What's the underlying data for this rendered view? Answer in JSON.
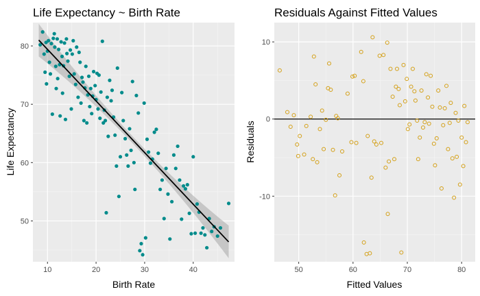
{
  "chart_data": [
    {
      "type": "scatter",
      "title": "Life Expectancy ~ Birth Rate",
      "xlabel": "Birth Rate",
      "ylabel": "Life Expectancy",
      "xlim": [
        7,
        48.5
      ],
      "ylim": [
        43,
        84
      ],
      "xticks": [
        10,
        20,
        30,
        40
      ],
      "yticks": [
        50,
        60,
        70,
        80
      ],
      "xtick_labels": [
        "10",
        "20",
        "30",
        "40"
      ],
      "ytick_labels": [
        "50",
        "60",
        "70",
        "80"
      ],
      "point_color": "#008b8b",
      "fit_line": {
        "x": [
          8.2,
          47.3
        ],
        "y": [
          81.0,
          46.4
        ],
        "color": "#000000",
        "band_color": "#999999"
      },
      "points": [
        [
          8.5,
          80.2
        ],
        [
          9.0,
          82.4
        ],
        [
          9.3,
          78.6
        ],
        [
          9.5,
          75.5
        ],
        [
          9.7,
          80.6
        ],
        [
          9.8,
          73.5
        ],
        [
          10.0,
          79.1
        ],
        [
          10.2,
          80.9
        ],
        [
          10.4,
          77.2
        ],
        [
          10.6,
          75.2
        ],
        [
          10.8,
          80.4
        ],
        [
          11.0,
          68.3
        ],
        [
          11.2,
          81.3
        ],
        [
          11.4,
          82.1
        ],
        [
          11.5,
          79.8
        ],
        [
          11.7,
          76.5
        ],
        [
          11.8,
          72.7
        ],
        [
          12.0,
          81.2
        ],
        [
          12.1,
          74.4
        ],
        [
          12.3,
          79.4
        ],
        [
          12.5,
          76.8
        ],
        [
          12.6,
          68.0
        ],
        [
          12.8,
          80.7
        ],
        [
          13.0,
          78.2
        ],
        [
          13.1,
          71.9
        ],
        [
          13.3,
          76.6
        ],
        [
          13.5,
          80.5
        ],
        [
          13.7,
          67.4
        ],
        [
          13.9,
          81.2
        ],
        [
          14.0,
          78.7
        ],
        [
          14.2,
          77.4
        ],
        [
          14.5,
          74.8
        ],
        [
          14.7,
          79.3
        ],
        [
          14.9,
          69.2
        ],
        [
          15.1,
          78.6
        ],
        [
          15.3,
          80.9
        ],
        [
          15.5,
          75.2
        ],
        [
          15.8,
          73.4
        ],
        [
          16.0,
          79.8
        ],
        [
          16.3,
          71.2
        ],
        [
          16.5,
          78.9
        ],
        [
          16.7,
          77.2
        ],
        [
          16.9,
          70.2
        ],
        [
          17.1,
          74.6
        ],
        [
          17.3,
          73.8
        ],
        [
          17.5,
          67.2
        ],
        [
          17.7,
          72.8
        ],
        [
          17.9,
          76.5
        ],
        [
          18.1,
          66.8
        ],
        [
          18.3,
          71.6
        ],
        [
          18.5,
          74.8
        ],
        [
          18.7,
          69.6
        ],
        [
          18.9,
          72.7
        ],
        [
          19.1,
          68.4
        ],
        [
          19.3,
          71.4
        ],
        [
          19.5,
          75.6
        ],
        [
          19.8,
          73.2
        ],
        [
          20.0,
          70.8
        ],
        [
          20.2,
          75.3
        ],
        [
          20.4,
          69.2
        ],
        [
          20.6,
          75.0
        ],
        [
          20.8,
          67.6
        ],
        [
          21.0,
          72.1
        ],
        [
          21.3,
          80.8
        ],
        [
          21.5,
          66.8
        ],
        [
          21.7,
          69.0
        ],
        [
          21.9,
          67.2
        ],
        [
          22.1,
          51.4
        ],
        [
          22.3,
          71.2
        ],
        [
          22.5,
          64.5
        ],
        [
          22.8,
          74.1
        ],
        [
          23.1,
          70.6
        ],
        [
          23.3,
          72.4
        ],
        [
          23.6,
          67.8
        ],
        [
          23.9,
          64.7
        ],
        [
          24.2,
          59.4
        ],
        [
          24.4,
          76.2
        ],
        [
          24.7,
          54.2
        ],
        [
          25.0,
          61.0
        ],
        [
          25.3,
          72.0
        ],
        [
          25.6,
          67.2
        ],
        [
          26.0,
          64.1
        ],
        [
          26.3,
          61.3
        ],
        [
          26.6,
          59.4
        ],
        [
          26.9,
          65.8
        ],
        [
          27.2,
          62.1
        ],
        [
          27.5,
          73.9
        ],
        [
          27.8,
          60.0
        ],
        [
          28.0,
          55.4
        ],
        [
          28.3,
          71.5
        ],
        [
          28.7,
          68.5
        ],
        [
          29.0,
          44.9
        ],
        [
          29.3,
          46.1
        ],
        [
          29.6,
          44.2
        ],
        [
          29.9,
          70.2
        ],
        [
          30.2,
          47.1
        ],
        [
          30.5,
          64.0
        ],
        [
          30.8,
          61.8
        ],
        [
          31.2,
          59.9
        ],
        [
          31.6,
          60.6
        ],
        [
          32.0,
          65.2
        ],
        [
          32.4,
          65.7
        ],
        [
          32.8,
          61.6
        ],
        [
          33.2,
          55.4
        ],
        [
          33.6,
          57.0
        ],
        [
          34.0,
          50.4
        ],
        [
          34.4,
          59.0
        ],
        [
          34.8,
          54.6
        ],
        [
          35.2,
          46.9
        ],
        [
          35.6,
          53.3
        ],
        [
          36.0,
          61.3
        ],
        [
          36.4,
          59.0
        ],
        [
          36.8,
          62.8
        ],
        [
          37.2,
          57.0
        ],
        [
          37.6,
          50.3
        ],
        [
          38.0,
          56.0
        ],
        [
          38.4,
          55.5
        ],
        [
          38.8,
          56.2
        ],
        [
          39.2,
          51.3
        ],
        [
          39.6,
          47.8
        ],
        [
          40.0,
          61.0
        ],
        [
          40.4,
          47.9
        ],
        [
          40.8,
          52.9
        ],
        [
          41.2,
          51.5
        ],
        [
          41.6,
          47.9
        ],
        [
          42.0,
          48.8
        ],
        [
          42.4,
          47.6
        ],
        [
          42.8,
          45.4
        ],
        [
          43.3,
          50.4
        ],
        [
          43.8,
          48.2
        ],
        [
          44.3,
          49.0
        ],
        [
          45.0,
          47.4
        ],
        [
          45.6,
          48.8
        ],
        [
          47.3,
          53.0
        ]
      ]
    },
    {
      "type": "scatter",
      "title": "Residuals Against Fitted Values",
      "xlabel": "Fitted Values",
      "ylabel": "Residuals",
      "xlim": [
        45.5,
        82.5
      ],
      "ylim": [
        -18.5,
        12.5
      ],
      "xticks": [
        50,
        60,
        70,
        80
      ],
      "yticks": [
        -10,
        0,
        10
      ],
      "xtick_labels": [
        "50",
        "60",
        "70",
        "80"
      ],
      "ytick_labels": [
        "-10",
        "0",
        "10"
      ],
      "point_color": "#d4a017",
      "hline": 0,
      "points": [
        [
          46.5,
          6.3
        ],
        [
          47.9,
          0.9
        ],
        [
          48.5,
          -1.0
        ],
        [
          49.1,
          0.5
        ],
        [
          49.7,
          -3.3
        ],
        [
          49.9,
          -4.8
        ],
        [
          50.2,
          -2.2
        ],
        [
          51.0,
          -4.6
        ],
        [
          51.4,
          -0.9
        ],
        [
          52.2,
          0.3
        ],
        [
          52.6,
          -5.2
        ],
        [
          52.8,
          8.1
        ],
        [
          53.1,
          4.5
        ],
        [
          53.4,
          -5.6
        ],
        [
          53.9,
          -1.3
        ],
        [
          54.3,
          1.1
        ],
        [
          54.6,
          -3.9
        ],
        [
          55.0,
          -0.1
        ],
        [
          55.4,
          4.0
        ],
        [
          55.6,
          7.2
        ],
        [
          55.9,
          3.8
        ],
        [
          56.3,
          -4.0
        ],
        [
          56.7,
          -9.9
        ],
        [
          56.9,
          0.4
        ],
        [
          57.2,
          0.1
        ],
        [
          57.5,
          -7.3
        ],
        [
          58.0,
          -4.2
        ],
        [
          59.0,
          3.3
        ],
        [
          59.7,
          -3.0
        ],
        [
          59.9,
          5.5
        ],
        [
          60.3,
          5.6
        ],
        [
          60.6,
          -3.1
        ],
        [
          61.5,
          8.7
        ],
        [
          61.9,
          4.9
        ],
        [
          62.0,
          -16.0
        ],
        [
          62.5,
          -17.5
        ],
        [
          62.7,
          -2.2
        ],
        [
          63.1,
          -17.4
        ],
        [
          63.4,
          -7.6
        ],
        [
          63.6,
          10.6
        ],
        [
          63.9,
          -2.9
        ],
        [
          64.3,
          -3.3
        ],
        [
          64.9,
          8.2
        ],
        [
          65.2,
          -3.1
        ],
        [
          65.6,
          8.3
        ],
        [
          66.0,
          -6.3
        ],
        [
          66.3,
          9.9
        ],
        [
          66.4,
          -12.3
        ],
        [
          66.6,
          -5.5
        ],
        [
          66.9,
          6.5
        ],
        [
          67.3,
          2.9
        ],
        [
          67.6,
          -5.2
        ],
        [
          67.9,
          4.2
        ],
        [
          68.1,
          6.5
        ],
        [
          68.4,
          3.9
        ],
        [
          68.6,
          1.8
        ],
        [
          68.9,
          -17.3
        ],
        [
          69.3,
          7.0
        ],
        [
          69.6,
          2.3
        ],
        [
          69.9,
          5.2
        ],
        [
          70.1,
          -1.3
        ],
        [
          70.4,
          -0.7
        ],
        [
          70.7,
          4.2
        ],
        [
          71.0,
          6.5
        ],
        [
          71.3,
          3.6
        ],
        [
          71.5,
          2.4
        ],
        [
          71.8,
          -0.2
        ],
        [
          72.0,
          -5.2
        ],
        [
          72.3,
          -2.4
        ],
        [
          72.6,
          3.7
        ],
        [
          72.9,
          -1.1
        ],
        [
          73.2,
          -0.4
        ],
        [
          73.5,
          5.8
        ],
        [
          73.8,
          2.8
        ],
        [
          74.0,
          -0.6
        ],
        [
          74.3,
          5.6
        ],
        [
          74.6,
          1.6
        ],
        [
          74.9,
          -3.2
        ],
        [
          75.1,
          -6.0
        ],
        [
          75.4,
          -2.5
        ],
        [
          75.7,
          3.7
        ],
        [
          76.0,
          1.5
        ],
        [
          76.3,
          -9.0
        ],
        [
          76.6,
          -0.8
        ],
        [
          76.9,
          1.4
        ],
        [
          77.2,
          4.3
        ],
        [
          77.5,
          -3.9
        ],
        [
          77.8,
          -0.5
        ],
        [
          78.0,
          2.1
        ],
        [
          78.3,
          -5.1
        ],
        [
          78.6,
          -10.2
        ],
        [
          78.9,
          0.8
        ],
        [
          79.1,
          -4.9
        ],
        [
          79.4,
          -0.2
        ],
        [
          79.7,
          -8.5
        ],
        [
          80.0,
          -2.4
        ],
        [
          80.3,
          -6.1
        ],
        [
          80.5,
          1.7
        ],
        [
          80.8,
          -3.0
        ],
        [
          81.1,
          -0.4
        ]
      ]
    }
  ]
}
